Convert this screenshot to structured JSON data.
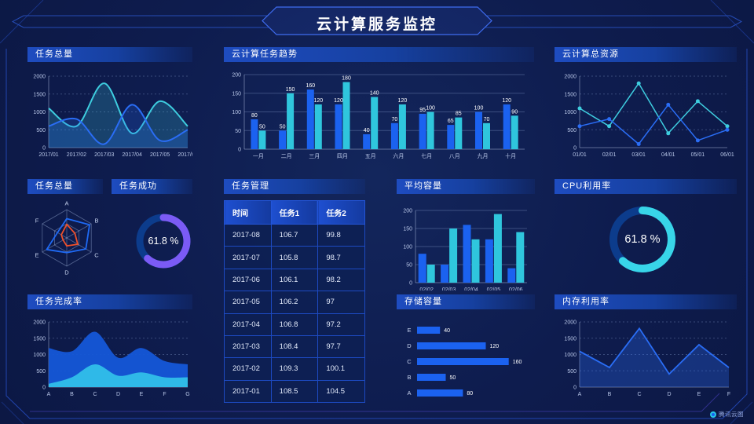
{
  "header": {
    "title": "云计算服务监控"
  },
  "footer": {
    "logo_text": "腾讯云图"
  },
  "colors": {
    "background": "#0e1c4e",
    "panel_title_bg": "#1e4cc0",
    "accent_blue": "#1b62f0",
    "accent_cyan": "#2fc6dd",
    "accent_purple": "#7b5bf5",
    "accent_red": "#f0502a",
    "gauge_track": "#0c3c8c",
    "frame_line": "#2b5be0"
  },
  "chart_data": [
    {
      "id": "task_total_line",
      "type": "xy",
      "title": "任务总量",
      "grid": "dash",
      "x": [
        "2017/01",
        "2017/02",
        "2017/03",
        "2017/04",
        "2017/05",
        "2017/06"
      ],
      "ylim": [
        0,
        2000
      ],
      "yticks": [
        0,
        500,
        1000,
        1500,
        2000
      ],
      "series": [
        {
          "color": "#3ecddf",
          "values": [
            1100,
            600,
            1800,
            400,
            1300,
            600
          ],
          "smooth": true,
          "fill": 0.22,
          "width": 2
        },
        {
          "color": "#2a6df5",
          "values": [
            600,
            800,
            100,
            1200,
            200,
            500
          ],
          "smooth": true,
          "fill": 0.22,
          "width": 2
        }
      ]
    },
    {
      "id": "task_trend_bars",
      "type": "bars",
      "title": "云计算任务趋势",
      "grid": "solid",
      "x": [
        "一月",
        "二月",
        "三月",
        "四月",
        "五月",
        "六月",
        "七月",
        "八月",
        "九月",
        "十月"
      ],
      "ylim": [
        0,
        200
      ],
      "yticks": [
        0,
        50,
        100,
        150,
        200
      ],
      "value_labels": true,
      "series": [
        {
          "color": "#1b62f0",
          "values": [
            80,
            50,
            160,
            120,
            40,
            70,
            95,
            65,
            100,
            120
          ]
        },
        {
          "color": "#2fc6dd",
          "values": [
            50,
            150,
            120,
            180,
            140,
            120,
            100,
            85,
            70,
            90
          ]
        }
      ]
    },
    {
      "id": "cloud_resources_line",
      "type": "xy",
      "title": "云计算总资源",
      "grid": "dash",
      "x": [
        "01/01",
        "02/01",
        "03/01",
        "04/01",
        "05/01",
        "06/01"
      ],
      "ylim": [
        0,
        2000
      ],
      "yticks": [
        0,
        500,
        1000,
        1500,
        2000
      ],
      "series": [
        {
          "color": "#3ecddf",
          "values": [
            1100,
            600,
            1800,
            400,
            1300,
            600
          ],
          "smooth": false,
          "fill": 0,
          "width": 1.5,
          "markers": true
        },
        {
          "color": "#2a6df5",
          "values": [
            600,
            800,
            100,
            1200,
            200,
            500
          ],
          "smooth": false,
          "fill": 0,
          "width": 1.5,
          "markers": true
        }
      ]
    },
    {
      "id": "task_total_radar",
      "type": "radar",
      "title": "任务总量",
      "axes": [
        "A",
        "B",
        "C",
        "D",
        "E",
        "F"
      ],
      "max": 100,
      "series": [
        {
          "color": "#1f6af5",
          "values": [
            68,
            93,
            78,
            52,
            82,
            38
          ]
        },
        {
          "color": "#f0502a",
          "values": [
            48,
            33,
            45,
            28,
            15,
            22
          ]
        }
      ]
    },
    {
      "id": "task_success_gauge",
      "type": "gauge",
      "title": "任务成功",
      "value": 61.8,
      "label": "61.8 %",
      "color": "#7b5bf5",
      "track": "#0c3c8c"
    },
    {
      "id": "task_table",
      "type": "table",
      "title": "任务管理",
      "columns": [
        "时间",
        "任务1",
        "任务2"
      ],
      "rows": [
        [
          "2017-08",
          "106.7",
          "99.8"
        ],
        [
          "2017-07",
          "105.8",
          "98.7"
        ],
        [
          "2017-06",
          "106.1",
          "98.2"
        ],
        [
          "2017-05",
          "106.2",
          "97"
        ],
        [
          "2017-04",
          "106.8",
          "97.2"
        ],
        [
          "2017-03",
          "108.4",
          "97.7"
        ],
        [
          "2017-02",
          "109.3",
          "100.1"
        ],
        [
          "2017-01",
          "108.5",
          "104.5"
        ]
      ]
    },
    {
      "id": "avg_capacity_bars",
      "type": "bars",
      "title": "平均容量",
      "grid": "solid",
      "x": [
        "02/02",
        "02/03",
        "02/04",
        "02/05",
        "02/06"
      ],
      "ylim": [
        0,
        200
      ],
      "yticks": [
        0,
        50,
        100,
        150,
        200
      ],
      "value_labels": false,
      "series": [
        {
          "color": "#1b62f0",
          "values": [
            80,
            50,
            160,
            120,
            40
          ]
        },
        {
          "color": "#2fc6dd",
          "values": [
            50,
            150,
            120,
            190,
            140
          ]
        }
      ]
    },
    {
      "id": "cpu_gauge",
      "type": "gauge",
      "title": "CPU利用率",
      "value": 61.8,
      "label": "61.8 %",
      "color": "#38d5e8",
      "track": "#0c3c8c"
    },
    {
      "id": "task_completion_area",
      "type": "xy",
      "title": "任务完成率",
      "grid": "dash",
      "x": [
        "A",
        "B",
        "C",
        "D",
        "E",
        "F",
        "G"
      ],
      "ylim": [
        0,
        2000
      ],
      "yticks": [
        0,
        500,
        1000,
        1500,
        2000
      ],
      "series": [
        {
          "color": "#1557d8",
          "values": [
            1200,
            1100,
            1700,
            900,
            1200,
            800,
            700
          ],
          "smooth": true,
          "fill": 0.95,
          "width": 0
        },
        {
          "color": "#2fb9e8",
          "values": [
            100,
            300,
            700,
            350,
            450,
            300,
            300
          ],
          "smooth": true,
          "fill": 1,
          "width": 0
        }
      ]
    },
    {
      "id": "storage_bars",
      "type": "hbars",
      "title": "存储容量",
      "categories": [
        "E",
        "D",
        "C",
        "B",
        "A"
      ],
      "values": [
        40,
        120,
        160,
        50,
        80
      ],
      "xlim": [
        0,
        170
      ],
      "color": "#1b62f0"
    },
    {
      "id": "memory_line",
      "type": "xy",
      "title": "内存利用率",
      "grid": "dash",
      "x": [
        "A",
        "B",
        "C",
        "D",
        "E",
        "F"
      ],
      "ylim": [
        0,
        2000
      ],
      "yticks": [
        0,
        500,
        1000,
        1500,
        2000
      ],
      "series": [
        {
          "color": "#2a6df5",
          "values": [
            1100,
            600,
            1800,
            400,
            1300,
            600
          ],
          "smooth": false,
          "fill": 0.3,
          "width": 1.8
        }
      ]
    }
  ]
}
